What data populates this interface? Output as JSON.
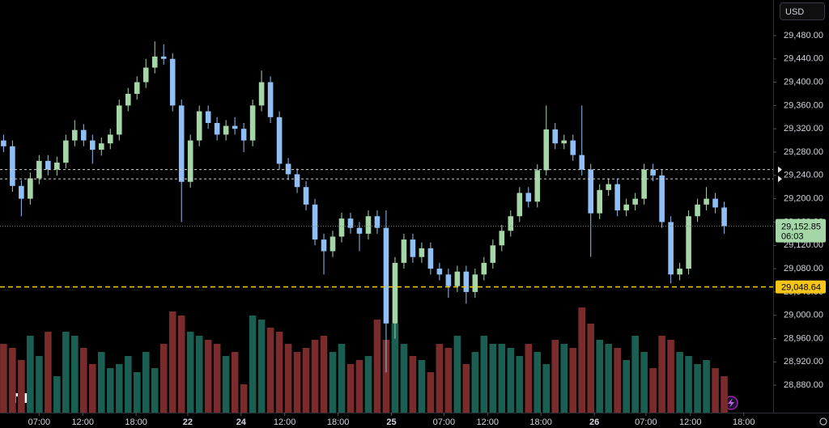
{
  "currency": "USD",
  "chart_data": {
    "type": "candlestick",
    "x": [
      3,
      4,
      5,
      6,
      7,
      8,
      9,
      10,
      11,
      12,
      13,
      14,
      15,
      16,
      17,
      18,
      19,
      20,
      21,
      22,
      23,
      24,
      25,
      26,
      27,
      28,
      29,
      30,
      31,
      32,
      33,
      34,
      35,
      36,
      37,
      38,
      39,
      40,
      41,
      42,
      43,
      44,
      45,
      46,
      47,
      48,
      49,
      50,
      51,
      52,
      53,
      54,
      55,
      56,
      57,
      58,
      59,
      60,
      61,
      62,
      63,
      64,
      65,
      66,
      67,
      68,
      69,
      70,
      71,
      72,
      73,
      74,
      75,
      76,
      77,
      78,
      79,
      80,
      81,
      82,
      83,
      84
    ],
    "open": [
      29300,
      29290,
      29222,
      29200,
      29235,
      29265,
      29250,
      29262,
      29300,
      29318,
      29300,
      29284,
      29295,
      29310,
      29360,
      29380,
      29400,
      29425,
      29444,
      29440,
      29360,
      29229,
      29300,
      29350,
      29330,
      29310,
      29325,
      29320,
      29300,
      29360,
      29400,
      29340,
      29260,
      29242,
      29220,
      29190,
      29130,
      29110,
      29135,
      29166,
      29150,
      29140,
      29170,
      29150,
      28986,
      29090,
      29130,
      29100,
      29115,
      29080,
      29070,
      29050,
      29075,
      29040,
      29070,
      29090,
      29120,
      29145,
      29170,
      29210,
      29195,
      29249,
      29319,
      29295,
      29300,
      29275,
      29250,
      29175,
      29215,
      29225,
      29180,
      29190,
      29200,
      29250,
      29240,
      29160,
      29070,
      29080,
      29170,
      29190,
      29200,
      29185
    ],
    "high": [
      29310,
      29300,
      29232,
      29245,
      29275,
      29275,
      29272,
      29310,
      29335,
      29328,
      29310,
      29305,
      29320,
      29370,
      29390,
      29410,
      29440,
      29470,
      29465,
      29450,
      29370,
      29310,
      29360,
      29360,
      29340,
      29335,
      29340,
      29330,
      29370,
      29420,
      29410,
      29350,
      29270,
      29252,
      29230,
      29200,
      29140,
      29145,
      29176,
      29176,
      29160,
      29180,
      29180,
      29180,
      29100,
      29140,
      29140,
      29125,
      29125,
      29090,
      29080,
      29085,
      29085,
      29080,
      29100,
      29130,
      29155,
      29180,
      29220,
      29220,
      29259,
      29360,
      29330,
      29310,
      29310,
      29360,
      29260,
      29225,
      29235,
      29235,
      29200,
      29210,
      29260,
      29260,
      29250,
      29170,
      29090,
      29180,
      29200,
      29220,
      29210,
      29195
    ],
    "low": [
      29280,
      29212,
      29170,
      29190,
      29225,
      29240,
      29240,
      29252,
      29290,
      29290,
      29260,
      29274,
      29285,
      29300,
      29350,
      29370,
      29390,
      29415,
      29430,
      29350,
      29160,
      29219,
      29290,
      29320,
      29300,
      29300,
      29310,
      29280,
      29290,
      29350,
      29330,
      29250,
      29232,
      29210,
      29180,
      29120,
      29070,
      29100,
      29125,
      29140,
      29110,
      29130,
      29140,
      28902,
      28960,
      29080,
      29090,
      29090,
      29070,
      29060,
      29030,
      29040,
      29020,
      29030,
      29060,
      29080,
      29110,
      29135,
      29160,
      29185,
      29185,
      29240,
      29285,
      29285,
      29265,
      29240,
      29100,
      29165,
      29205,
      29170,
      29170,
      29180,
      29190,
      29230,
      29150,
      29055,
      29060,
      29070,
      29160,
      29180,
      29175,
      29140
    ],
    "close": [
      29290,
      29222,
      29200,
      29235,
      29265,
      29250,
      29262,
      29300,
      29318,
      29300,
      29284,
      29295,
      29310,
      29360,
      29380,
      29400,
      29425,
      29444,
      29440,
      29360,
      29229,
      29300,
      29350,
      29330,
      29310,
      29325,
      29320,
      29300,
      29360,
      29400,
      29340,
      29260,
      29242,
      29220,
      29190,
      29130,
      29110,
      29135,
      29166,
      29150,
      29140,
      29170,
      29150,
      28986,
      29090,
      29130,
      29100,
      29115,
      29080,
      29070,
      29050,
      29075,
      29040,
      29070,
      29090,
      29120,
      29145,
      29170,
      29210,
      29195,
      29249,
      29319,
      29295,
      29300,
      29275,
      29250,
      29175,
      29215,
      29225,
      29180,
      29190,
      29200,
      29250,
      29240,
      29160,
      29070,
      29080,
      29170,
      29190,
      29200,
      29185,
      29152.85
    ],
    "volume": [
      85,
      80,
      65,
      95,
      70,
      100,
      45,
      100,
      95,
      80,
      60,
      75,
      55,
      60,
      70,
      50,
      75,
      55,
      85,
      125,
      120,
      100,
      95,
      90,
      85,
      70,
      75,
      35,
      120,
      115,
      105,
      100,
      85,
      75,
      80,
      90,
      95,
      75,
      85,
      60,
      65,
      70,
      115,
      90,
      110,
      85,
      70,
      65,
      50,
      85,
      80,
      95,
      60,
      75,
      95,
      85,
      85,
      80,
      70,
      85,
      75,
      60,
      90,
      85,
      80,
      130,
      110,
      90,
      85,
      80,
      65,
      95,
      75,
      55,
      95,
      90,
      75,
      70,
      60,
      65,
      55,
      45
    ],
    "up_color": "#a5d6a7",
    "down_color": "#90bff5",
    "volume_up_color": "#1b5e52",
    "volume_down_color": "#7a2b2b",
    "xlim": [
      2.6,
      89.5
    ],
    "xticks": [
      {
        "value": 7,
        "label": "07:00"
      },
      {
        "value": 11.9,
        "label": "12:00"
      },
      {
        "value": 17.9,
        "label": "18:00"
      },
      {
        "value": 23.7,
        "label": "22"
      },
      {
        "value": 29.7,
        "label": "24"
      },
      {
        "value": 34.6,
        "label": "12:00"
      },
      {
        "value": 40.6,
        "label": "18:00"
      },
      {
        "value": 46.6,
        "label": "25"
      },
      {
        "value": 52.5,
        "label": "07:00"
      },
      {
        "value": 57.4,
        "label": "12:00"
      },
      {
        "value": 63.4,
        "label": "18:00"
      },
      {
        "value": 69.4,
        "label": "26"
      },
      {
        "value": 75.2,
        "label": "07:00"
      },
      {
        "value": 80.2,
        "label": "12:00"
      },
      {
        "value": 86.2,
        "label": "18:00"
      }
    ],
    "ylim": [
      28833,
      29541
    ],
    "yticks": [
      {
        "value": 29480,
        "label": "29,480.00"
      },
      {
        "value": 29440,
        "label": "29,440.00"
      },
      {
        "value": 29400,
        "label": "29,400.00"
      },
      {
        "value": 29360,
        "label": "29,360.00"
      },
      {
        "value": 29320,
        "label": "29,320.00"
      },
      {
        "value": 29280,
        "label": "29,280.00"
      },
      {
        "value": 29240,
        "label": "29,240.00"
      },
      {
        "value": 29200,
        "label": "29,200.00"
      },
      {
        "value": 29160,
        "label": "29,160.00"
      },
      {
        "value": 29120,
        "label": "29,120.00"
      },
      {
        "value": 29080,
        "label": "29,080.00"
      },
      {
        "value": 29040,
        "label": "29,040.00"
      },
      {
        "value": 29000,
        "label": "29,000.00"
      },
      {
        "value": 28960,
        "label": "28,960.00"
      },
      {
        "value": 28920,
        "label": "28,920.00"
      },
      {
        "value": 28880,
        "label": "28,880.00"
      }
    ],
    "last_price": {
      "value": 29152.85,
      "label": "29,152.85",
      "countdown": "06:03",
      "color": "#a5d6a7"
    },
    "horizontal_lines": [
      {
        "value": 29048.64,
        "label": "29,048.64",
        "color": "#f5c518"
      },
      {
        "value": 29250,
        "color": "#d0d0d0"
      },
      {
        "value": 29234,
        "color": "#d0d0d0"
      }
    ]
  }
}
